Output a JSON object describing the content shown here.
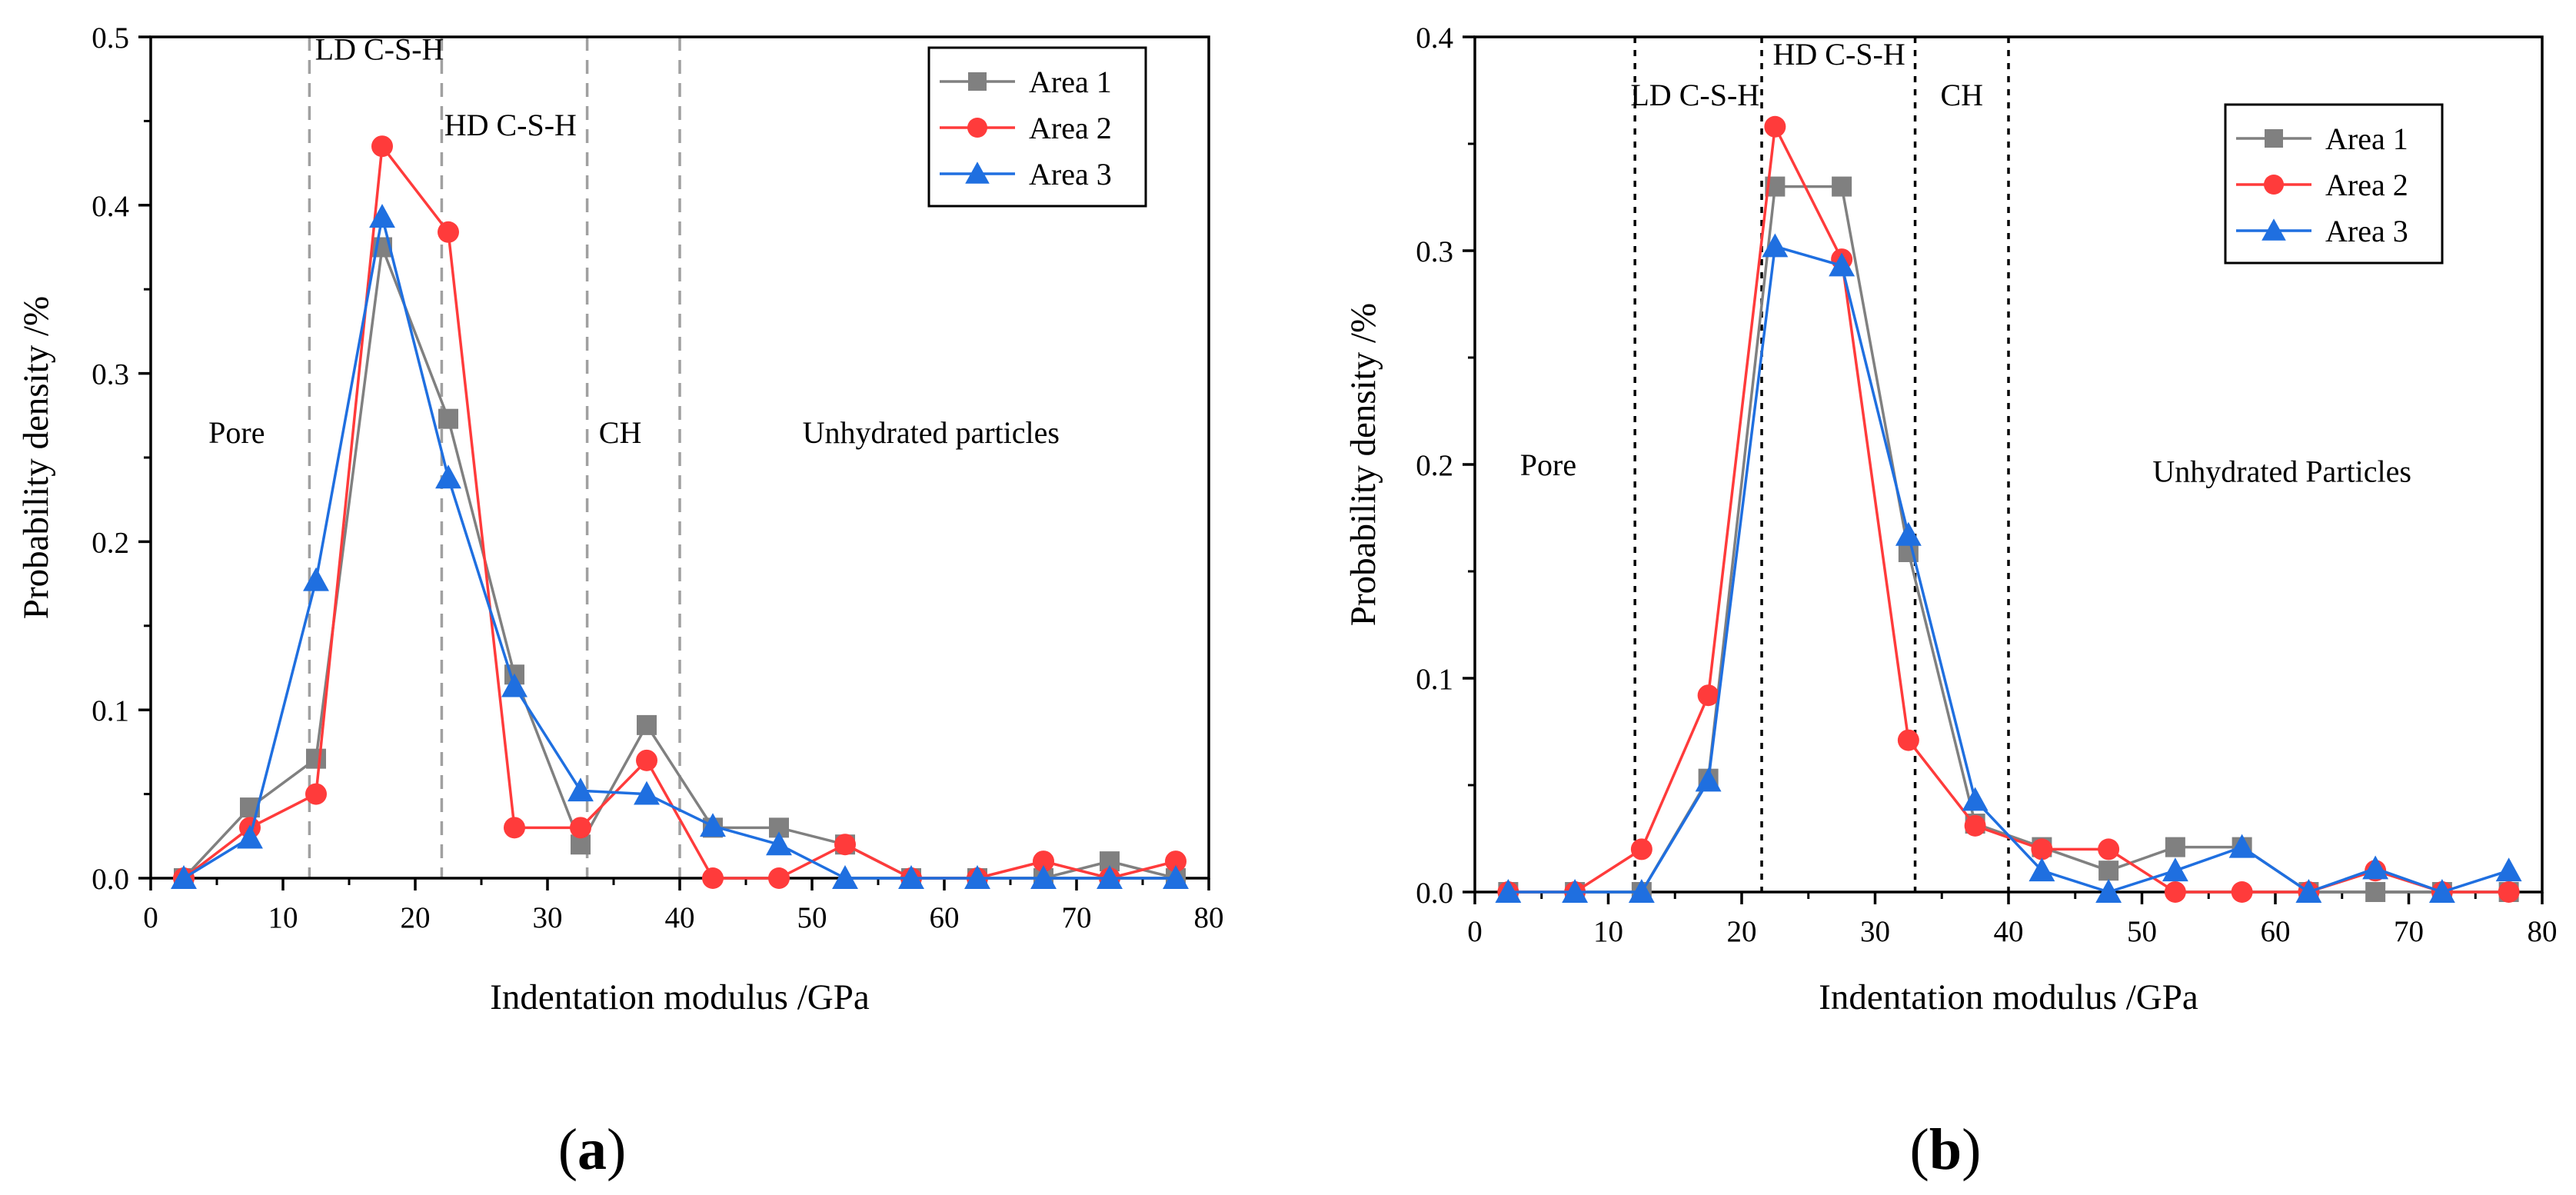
{
  "colors": {
    "area1": "#808080",
    "area2": "#ff3b3b",
    "area3": "#1f6fe0",
    "region_line_a": "#a0a0a0",
    "region_line_b": "#000000",
    "axis": "#000000"
  },
  "panel_labels": {
    "a": "a",
    "b": "b"
  },
  "chart_data": [
    {
      "id": "a",
      "type": "line",
      "xlabel": "Indentation modulus /GPa",
      "ylabel": "Probability density /%",
      "xlim": [
        0,
        80
      ],
      "ylim": [
        0,
        0.5
      ],
      "xticks": [
        0,
        10,
        20,
        30,
        40,
        50,
        60,
        70,
        80
      ],
      "xtick_labels": [
        "0",
        "10",
        "20",
        "30",
        "40",
        "50",
        "60",
        "70",
        "80"
      ],
      "yticks": [
        0.0,
        0.1,
        0.2,
        0.3,
        0.4,
        0.5
      ],
      "ytick_labels": [
        "0.0",
        "0.1",
        "0.2",
        "0.3",
        "0.4",
        "0.5"
      ],
      "x": [
        2.5,
        7.5,
        12.5,
        17.5,
        22.5,
        27.5,
        32.5,
        37.5,
        42.5,
        47.5,
        52.5,
        57.5,
        62.5,
        67.5,
        72.5,
        77.5
      ],
      "series": [
        {
          "name": "Area 1",
          "marker": "square",
          "values": [
            0.0,
            0.042,
            0.071,
            0.375,
            0.273,
            0.121,
            0.02,
            0.091,
            0.03,
            0.03,
            0.02,
            0.0,
            0.0,
            0.0,
            0.01,
            0.0
          ]
        },
        {
          "name": "Area 2",
          "marker": "circle",
          "values": [
            0.0,
            0.03,
            0.05,
            0.435,
            0.384,
            0.03,
            0.03,
            0.07,
            0.0,
            0.0,
            0.02,
            0.0,
            0.0,
            0.01,
            0.0,
            0.01
          ]
        },
        {
          "name": "Area 3",
          "marker": "triangle",
          "values": [
            0.0,
            0.024,
            0.177,
            0.393,
            0.238,
            0.114,
            0.052,
            0.05,
            0.031,
            0.02,
            0.0,
            0.0,
            0.0,
            0.0,
            0.0,
            0.0
          ]
        }
      ],
      "region_boundaries": [
        12,
        22,
        33,
        40
      ],
      "region_labels": [
        {
          "text": "Pore",
          "x": 6.5,
          "y": 0.265
        },
        {
          "text": "LD C-S-H",
          "x": 17.3,
          "y": 0.493
        },
        {
          "text": "HD C-S-H",
          "x": 27.2,
          "y": 0.448
        },
        {
          "text": "CH",
          "x": 35.5,
          "y": 0.265
        },
        {
          "text": "Unhydrated particles",
          "x": 59,
          "y": 0.265
        }
      ],
      "legend_position": "top-right"
    },
    {
      "id": "b",
      "type": "line",
      "xlabel": "Indentation modulus /GPa",
      "ylabel": "Probability density /%",
      "xlim": [
        0,
        80
      ],
      "ylim": [
        0,
        0.4
      ],
      "xticks": [
        0,
        10,
        20,
        30,
        40,
        50,
        60,
        70,
        80
      ],
      "xtick_labels": [
        "0",
        "10",
        "20",
        "30",
        "40",
        "50",
        "60",
        "70",
        "80"
      ],
      "yticks": [
        0.0,
        0.1,
        0.2,
        0.3,
        0.4
      ],
      "ytick_labels": [
        "0.0",
        "0.1",
        "0.2",
        "0.3",
        "0.4"
      ],
      "x": [
        2.5,
        7.5,
        12.5,
        17.5,
        22.5,
        27.5,
        32.5,
        37.5,
        42.5,
        47.5,
        52.5,
        57.5,
        62.5,
        67.5,
        72.5,
        77.5
      ],
      "series": [
        {
          "name": "Area 1",
          "marker": "square",
          "values": [
            0.0,
            0.0,
            0.0,
            0.053,
            0.33,
            0.33,
            0.159,
            0.032,
            0.021,
            0.01,
            0.021,
            0.021,
            0.0,
            0.0,
            0.0,
            0.0
          ]
        },
        {
          "name": "Area 2",
          "marker": "circle",
          "values": [
            0.0,
            0.0,
            0.02,
            0.092,
            0.358,
            0.296,
            0.071,
            0.031,
            0.02,
            0.02,
            0.0,
            0.0,
            0.0,
            0.01,
            0.0,
            0.0
          ]
        },
        {
          "name": "Area 3",
          "marker": "triangle",
          "values": [
            0.0,
            0.0,
            0.0,
            0.052,
            0.302,
            0.293,
            0.167,
            0.043,
            0.01,
            0.0,
            0.01,
            0.021,
            0.0,
            0.011,
            0.0,
            0.01
          ]
        }
      ],
      "region_boundaries": [
        12,
        21.5,
        33,
        40
      ],
      "region_labels": [
        {
          "text": "Pore",
          "x": 5.5,
          "y": 0.2
        },
        {
          "text": "LD C-S-H",
          "x": 16.5,
          "y": 0.373
        },
        {
          "text": "HD C-S-H",
          "x": 27.3,
          "y": 0.392
        },
        {
          "text": "CH",
          "x": 36.5,
          "y": 0.373
        },
        {
          "text": "Unhydrated Particles",
          "x": 60.5,
          "y": 0.197
        }
      ],
      "legend_position": "top-right"
    }
  ]
}
